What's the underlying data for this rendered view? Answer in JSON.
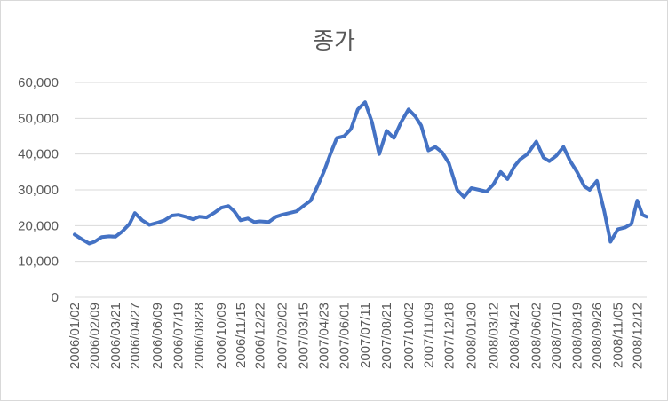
{
  "chart_data": {
    "type": "line",
    "title": "종가",
    "xlabel": "",
    "ylabel": "",
    "ylim": [
      0,
      60000
    ],
    "yticks": [
      "0",
      "10,000",
      "20,000",
      "30,000",
      "40,000",
      "50,000",
      "60,000"
    ],
    "ytick_values": [
      0,
      10000,
      20000,
      30000,
      40000,
      50000,
      60000
    ],
    "grid": "horizontal",
    "legend": "none",
    "line_color": "#4472c4",
    "xtick_labels": [
      "2006/01/02",
      "2006/02/09",
      "2006/03/21",
      "2006/04/27",
      "2006/06/09",
      "2006/07/19",
      "2006/08/28",
      "2006/10/09",
      "2006/11/15",
      "2006/12/22",
      "2007/02/02",
      "2007/03/15",
      "2007/04/23",
      "2007/06/01",
      "2007/07/11",
      "2007/08/21",
      "2007/10/02",
      "2007/11/09",
      "2007/12/18",
      "2008/01/30",
      "2008/03/12",
      "2008/04/21",
      "2008/06/02",
      "2008/07/10",
      "2008/08/19",
      "2008/09/26",
      "2008/11/05",
      "2008/12/12"
    ],
    "x": [
      "2006/01/02",
      "2006/01/16",
      "2006/01/30",
      "2006/02/09",
      "2006/02/23",
      "2006/03/09",
      "2006/03/21",
      "2006/04/04",
      "2006/04/17",
      "2006/04/27",
      "2006/05/11",
      "2006/05/25",
      "2006/06/09",
      "2006/06/23",
      "2006/07/07",
      "2006/07/19",
      "2006/08/02",
      "2006/08/16",
      "2006/08/28",
      "2006/09/11",
      "2006/09/25",
      "2006/10/09",
      "2006/10/23",
      "2006/11/03",
      "2006/11/15",
      "2006/11/29",
      "2006/12/11",
      "2006/12/22",
      "2007/01/08",
      "2007/01/22",
      "2007/02/02",
      "2007/02/16",
      "2007/03/02",
      "2007/03/15",
      "2007/03/29",
      "2007/04/11",
      "2007/04/23",
      "2007/05/07",
      "2007/05/18",
      "2007/06/01",
      "2007/06/14",
      "2007/06/27",
      "2007/07/11",
      "2007/07/24",
      "2007/08/07",
      "2007/08/21",
      "2007/09/04",
      "2007/09/18",
      "2007/10/02",
      "2007/10/15",
      "2007/10/26",
      "2007/11/09",
      "2007/11/22",
      "2007/12/05",
      "2007/12/18",
      "2008/01/03",
      "2008/01/16",
      "2008/01/30",
      "2008/02/14",
      "2008/02/28",
      "2008/03/12",
      "2008/03/26",
      "2008/04/08",
      "2008/04/21",
      "2008/05/02",
      "2008/05/16",
      "2008/06/02",
      "2008/06/16",
      "2008/06/27",
      "2008/07/10",
      "2008/07/24",
      "2008/08/06",
      "2008/08/19",
      "2008/09/02",
      "2008/09/12",
      "2008/09/26",
      "2008/10/10",
      "2008/10/22",
      "2008/11/05",
      "2008/11/19",
      "2008/12/01",
      "2008/12/12",
      "2008/12/22",
      "2008/12/30"
    ],
    "values": [
      17500,
      16200,
      15000,
      15500,
      16800,
      17000,
      16900,
      18500,
      20500,
      23500,
      21500,
      20200,
      20800,
      21500,
      22800,
      23000,
      22500,
      21800,
      22500,
      22300,
      23500,
      25000,
      25500,
      24000,
      21500,
      22000,
      21000,
      21200,
      21000,
      22500,
      23000,
      23500,
      24000,
      25500,
      27000,
      31000,
      35000,
      40500,
      44500,
      45000,
      47000,
      52500,
      54500,
      49000,
      40000,
      46500,
      44500,
      49000,
      52500,
      50500,
      48000,
      41000,
      42000,
      40500,
      37500,
      30000,
      28000,
      30500,
      30000,
      29500,
      31500,
      35000,
      33000,
      36500,
      38500,
      40000,
      43500,
      39000,
      38000,
      39500,
      42000,
      38000,
      35000,
      31000,
      30000,
      32500,
      24000,
      15500,
      19000,
      19500,
      20500,
      27000,
      23000,
      22500
    ]
  }
}
